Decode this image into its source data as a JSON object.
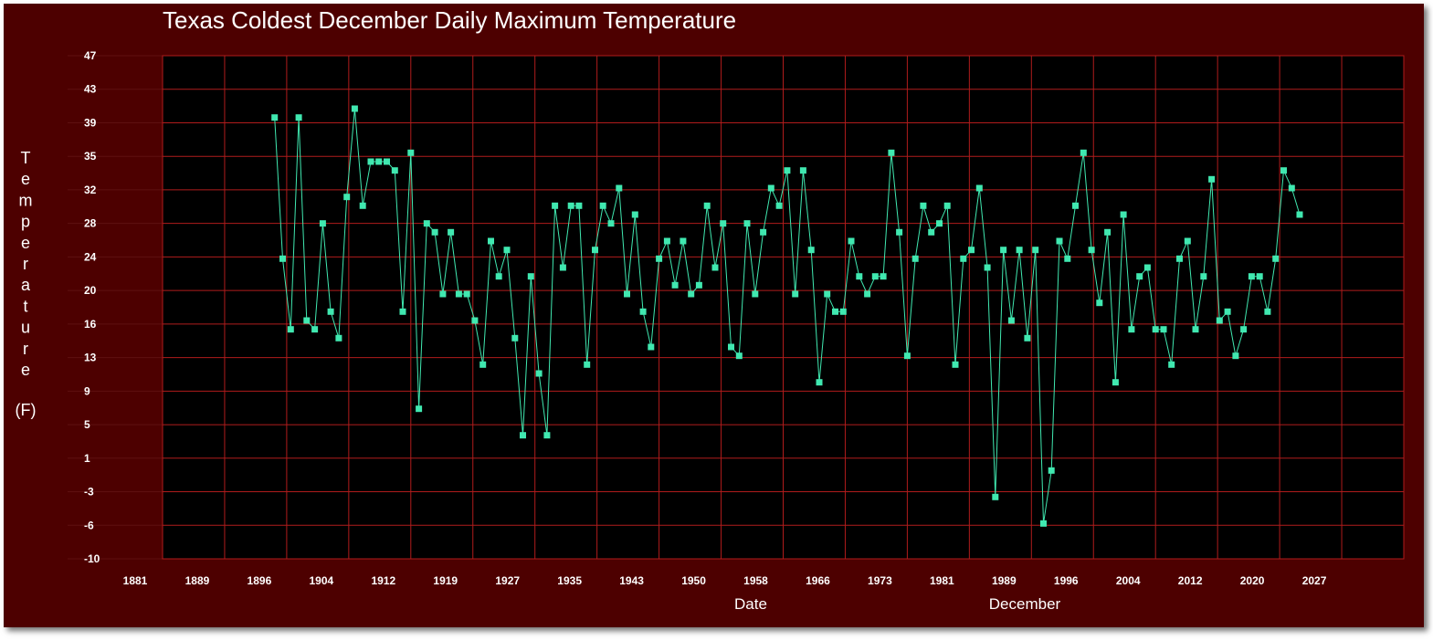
{
  "chart_data": {
    "type": "line",
    "title": "Texas Coldest December Daily Maximum Temperature",
    "xlabel": "Date",
    "xlabel_note": "December",
    "ylabel_chars": [
      "T",
      "e",
      "m",
      "p",
      "e",
      "r",
      "a",
      "t",
      "u",
      "r",
      "e"
    ],
    "ylabel_unit": "(F)",
    "xticks": [
      "1881",
      "1889",
      "1896",
      "1904",
      "1912",
      "1919",
      "1927",
      "1935",
      "1943",
      "1950",
      "1958",
      "1966",
      "1973",
      "1981",
      "1989",
      "1996",
      "2004",
      "2012",
      "2020",
      "2027"
    ],
    "yticks": [
      "47",
      "43",
      "39",
      "35",
      "32",
      "28",
      "24",
      "20",
      "16",
      "13",
      "9",
      "5",
      "1",
      "-3",
      "-6",
      "-10"
    ],
    "xlim": [
      1881,
      2036
    ],
    "ylim": [
      -10,
      47
    ],
    "grid": true,
    "colors": {
      "background": "#4d0000",
      "plot_area": "#000000",
      "grid": "#b01c1c",
      "series": "#40e8b0",
      "text": "#ffffff"
    },
    "series": [
      {
        "x": [
          1895,
          1896,
          1897,
          1898,
          1899,
          1900,
          1901,
          1902,
          1903,
          1904,
          1905,
          1906,
          1907,
          1908,
          1909,
          1910,
          1911,
          1912,
          1913,
          1914,
          1915,
          1916,
          1917,
          1918,
          1919,
          1920,
          1921,
          1922,
          1923,
          1924,
          1925,
          1926,
          1927,
          1928,
          1929,
          1930,
          1931,
          1932,
          1933,
          1934,
          1935,
          1936,
          1937,
          1938,
          1939,
          1940,
          1941,
          1942,
          1943,
          1944,
          1945,
          1946,
          1947,
          1948,
          1949,
          1950,
          1951,
          1952,
          1953,
          1954,
          1955,
          1956,
          1957,
          1958,
          1959,
          1960,
          1961,
          1962,
          1963,
          1964,
          1965,
          1966,
          1967,
          1968,
          1969,
          1970,
          1971,
          1972,
          1973,
          1974,
          1975,
          1976,
          1977,
          1978,
          1979,
          1980,
          1981,
          1982,
          1983,
          1984,
          1985,
          1986,
          1987,
          1988,
          1989,
          1990,
          1991,
          1992,
          1993,
          1994,
          1995,
          1996,
          1997,
          1998,
          1999,
          2000,
          2001,
          2002,
          2003,
          2004,
          2005,
          2006,
          2007,
          2008,
          2009,
          2010,
          2011,
          2012,
          2013,
          2014,
          2015,
          2016,
          2017,
          2018,
          2019,
          2020,
          2021,
          2022,
          2023
        ],
        "values": [
          40,
          24,
          16,
          40,
          17,
          16,
          28,
          18,
          15,
          31,
          41,
          30,
          35,
          35,
          35,
          34,
          18,
          36,
          7,
          28,
          27,
          20,
          27,
          20,
          20,
          17,
          12,
          26,
          22,
          25,
          15,
          4,
          22,
          11,
          4,
          30,
          23,
          30,
          30,
          12,
          25,
          30,
          28,
          32,
          20,
          29,
          18,
          14,
          24,
          26,
          21,
          26,
          20,
          21,
          30,
          23,
          28,
          14,
          13,
          28,
          20,
          27,
          32,
          30,
          34,
          20,
          34,
          25,
          10,
          20,
          18,
          18,
          26,
          22,
          20,
          22,
          22,
          36,
          27,
          13,
          24,
          30,
          27,
          28,
          30,
          12,
          24,
          25,
          32,
          23,
          -3,
          25,
          17,
          25,
          15,
          25,
          -6,
          0,
          26,
          24,
          30,
          36,
          25,
          19,
          27,
          10,
          29,
          16,
          22,
          23,
          16,
          16,
          12,
          24,
          26,
          16,
          22,
          33,
          17,
          18,
          13,
          16,
          22,
          22,
          18,
          24,
          34,
          32,
          29
        ]
      }
    ]
  }
}
